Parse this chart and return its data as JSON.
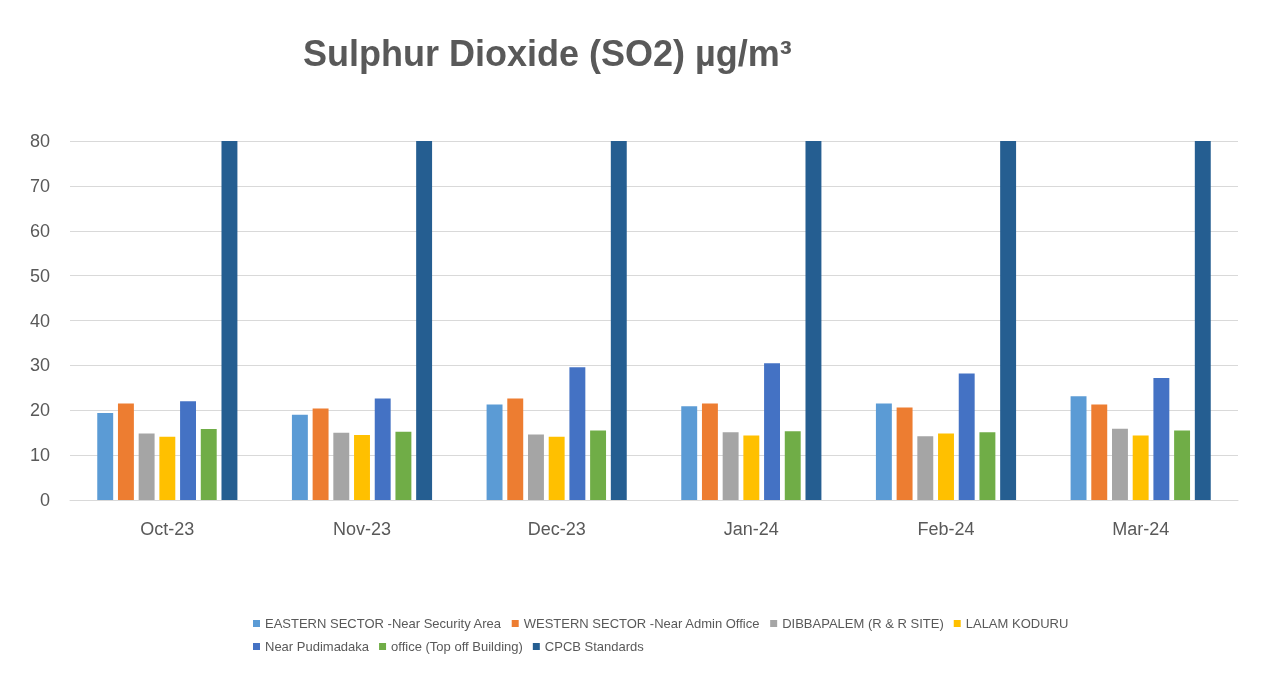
{
  "chart_data": {
    "type": "bar",
    "title": "Sulphur Dioxide (SO2) µg/m³",
    "categories": [
      "Oct-23",
      "Nov-23",
      "Dec-23",
      "Jan-24",
      "Feb-24",
      "Mar-24"
    ],
    "series": [
      {
        "name": "EASTERN SECTOR -Near Security Area",
        "color": "#5b9bd5",
        "values": [
          19.4,
          19,
          21.3,
          20.9,
          21.5,
          23.1
        ]
      },
      {
        "name": "WESTERN SECTOR -Near Admin Office",
        "color": "#ed7d31",
        "values": [
          21.5,
          20.4,
          22.6,
          21.5,
          20.6,
          21.3
        ]
      },
      {
        "name": "DIBBAPALEM (R & R SITE)",
        "color": "#a5a5a5",
        "values": [
          14.8,
          15,
          14.6,
          15.1,
          14.2,
          15.9
        ]
      },
      {
        "name": "LALAM KODURU",
        "color": "#ffc000",
        "values": [
          14.1,
          14.5,
          14.1,
          14.4,
          14.8,
          14.4
        ]
      },
      {
        "name": "Near Pudimadaka",
        "color": "#4472c4",
        "values": [
          22,
          22.6,
          29.6,
          30.5,
          28.2,
          27.2
        ]
      },
      {
        "name": "office (Top off Building)",
        "color": "#70ad47",
        "values": [
          15.8,
          15.2,
          15.5,
          15.3,
          15.1,
          15.5
        ]
      },
      {
        "name": "CPCB Standards",
        "color": "#255e91",
        "values": [
          80,
          80,
          80,
          80,
          80,
          80
        ]
      }
    ],
    "ylim": [
      0,
      80
    ],
    "yticks": [
      0,
      10,
      20,
      30,
      40,
      50,
      60,
      70,
      80
    ],
    "grid": "y",
    "legend": "bottom"
  }
}
